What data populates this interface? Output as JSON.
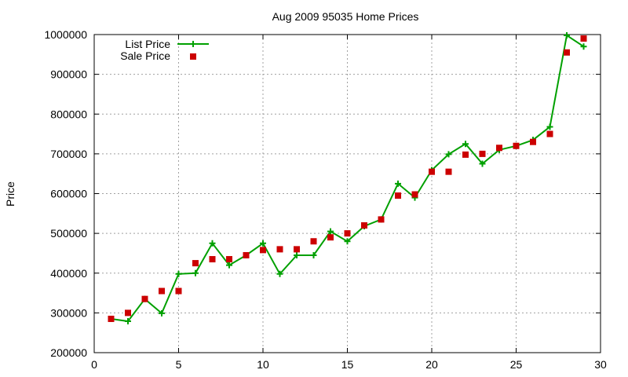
{
  "chart_data": {
    "type": "line",
    "title": "Aug 2009 95035 Home Prices",
    "xlabel": "",
    "ylabel": "Price",
    "xlim": [
      0,
      30
    ],
    "ylim": [
      200000,
      1000000
    ],
    "xticks": [
      0,
      5,
      10,
      15,
      20,
      25,
      30
    ],
    "yticks": [
      200000,
      300000,
      400000,
      500000,
      600000,
      700000,
      800000,
      900000,
      1000000
    ],
    "x_tick_labels": [
      "0",
      "5",
      "10",
      "15",
      "20",
      "25",
      "30"
    ],
    "y_tick_labels": [
      "200000",
      "300000",
      "400000",
      "500000",
      "600000",
      "700000",
      "800000",
      "900000",
      "1000000"
    ],
    "grid": true,
    "legend_position": "top-left",
    "series": [
      {
        "name": "List Price",
        "style": "line+plus",
        "color": "#00a000",
        "x": [
          1,
          2,
          3,
          4,
          5,
          6,
          7,
          8,
          9,
          10,
          11,
          12,
          13,
          14,
          15,
          16,
          17,
          18,
          19,
          20,
          21,
          22,
          23,
          24,
          25,
          26,
          27,
          28,
          29
        ],
        "values": [
          285000,
          279000,
          335000,
          299000,
          398000,
          400000,
          475000,
          420000,
          445000,
          475000,
          398000,
          445000,
          445000,
          505000,
          480000,
          518000,
          535000,
          625000,
          590000,
          659000,
          699000,
          725000,
          675000,
          710000,
          720000,
          735000,
          768000,
          998000,
          970000
        ]
      },
      {
        "name": "Sale Price",
        "style": "square",
        "color": "#cc0000",
        "x": [
          1,
          2,
          3,
          4,
          5,
          6,
          7,
          8,
          9,
          10,
          11,
          12,
          13,
          14,
          15,
          16,
          17,
          18,
          19,
          20,
          21,
          22,
          23,
          24,
          25,
          26,
          27,
          28,
          29
        ],
        "values": [
          285000,
          300000,
          335000,
          355000,
          355000,
          425000,
          435000,
          435000,
          445000,
          458000,
          460000,
          460000,
          480000,
          490000,
          500000,
          520000,
          535000,
          595000,
          598000,
          655000,
          655000,
          698000,
          700000,
          715000,
          720000,
          730000,
          750000,
          955000,
          990000
        ]
      }
    ]
  }
}
